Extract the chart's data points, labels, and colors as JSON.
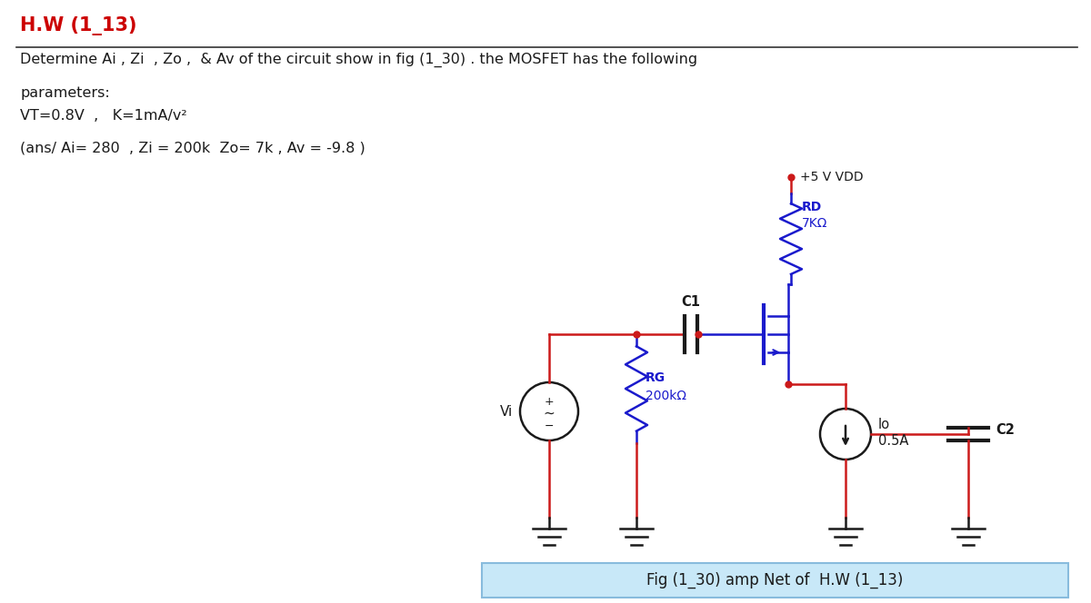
{
  "title": "H.W (1_13)",
  "title_color": "#cc0000",
  "line1": "Determine Ai , Zi  , Zo ,  & Av of the circuit show in fig (1_30) . the MOSFET has the following",
  "line2": "parameters:",
  "line3": "VT=0.8V  ,   K=1mA/v²",
  "line4": "(ans/ Ai= 280  , Zi = 200k  Zo= 7k , Av = -9.8 )",
  "fig_caption": "Fig (1_30) amp Net of  H.W (1_13)",
  "text_color": "#1a1a1a",
  "bg_color": "#ffffff",
  "circuit_blue": "#1a1acc",
  "circuit_red": "#cc1a1a",
  "caption_bg": "#c8e8f8",
  "caption_border": "#88bbdd"
}
